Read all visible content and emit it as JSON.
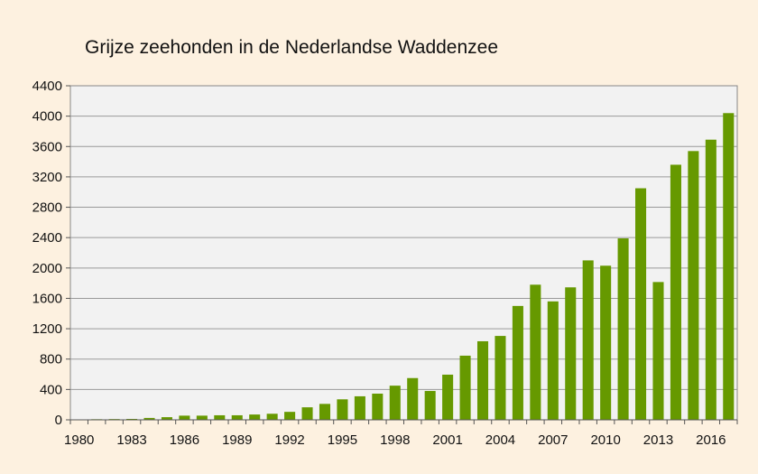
{
  "chart_data": {
    "type": "bar",
    "title": "Grijze zeehonden in de Nederlandse Waddenzee",
    "xlabel": "",
    "ylabel": "",
    "ylim": [
      0,
      4400
    ],
    "yticks": [
      0,
      400,
      800,
      1200,
      1600,
      2000,
      2400,
      2800,
      3200,
      3600,
      4000,
      4400
    ],
    "xtick_labels": [
      "1980",
      "1983",
      "1986",
      "1989",
      "1992",
      "1995",
      "1998",
      "2001",
      "2004",
      "2007",
      "2010",
      "2013",
      "2016"
    ],
    "grid": true,
    "legend": "none",
    "bar_color": "#669900",
    "plot_background": "#f2f2f2",
    "page_background": "#fdf1e0",
    "categories": [
      1980,
      1981,
      1982,
      1983,
      1984,
      1985,
      1986,
      1987,
      1988,
      1989,
      1990,
      1991,
      1992,
      1993,
      1994,
      1995,
      1996,
      1997,
      1998,
      1999,
      2000,
      2001,
      2002,
      2003,
      2004,
      2005,
      2006,
      2007,
      2008,
      2009,
      2010,
      2011,
      2012,
      2013,
      2014,
      2015,
      2016,
      2017
    ],
    "values": [
      5,
      8,
      10,
      12,
      25,
      35,
      55,
      55,
      60,
      60,
      70,
      80,
      105,
      165,
      210,
      270,
      310,
      345,
      450,
      550,
      380,
      595,
      845,
      1035,
      1105,
      1500,
      1780,
      1560,
      1745,
      2100,
      2030,
      2390,
      3050,
      1815,
      3360,
      3540,
      3690,
      4040
    ]
  }
}
